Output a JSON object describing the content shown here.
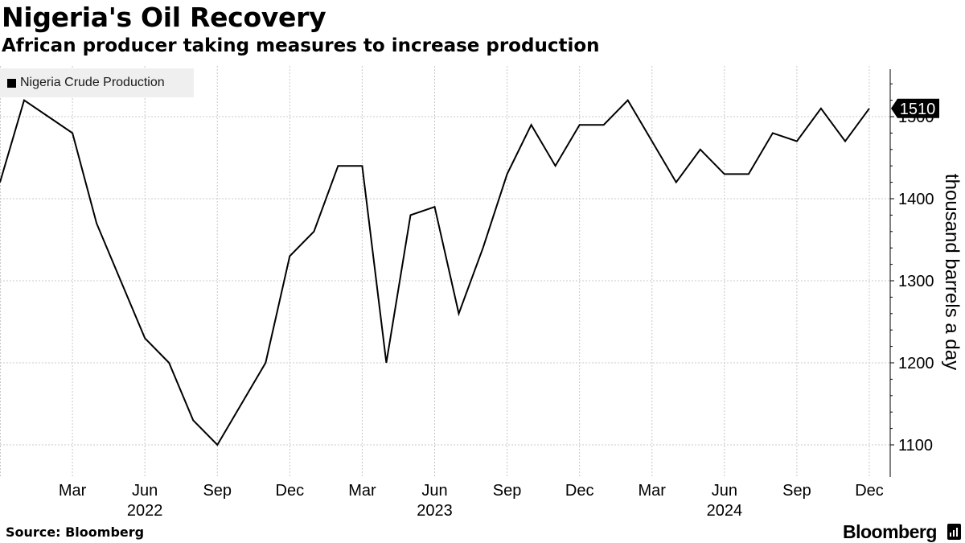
{
  "title": "Nigeria's Oil Recovery",
  "subtitle": "African producer taking measures to increase production",
  "source": "Source: Bloomberg",
  "brand": "Bloomberg",
  "brand_icon": "bloomberg-bars-icon",
  "legend": {
    "label": "Nigeria Crude Production",
    "color": "#000000"
  },
  "chart_data": {
    "type": "line",
    "title": "Nigeria's Oil Recovery",
    "subtitle": "African producer taking measures to increase production",
    "series": [
      {
        "name": "Nigeria Crude Production",
        "color": "#000000",
        "x": [
          "2021-12",
          "2022-01",
          "2022-02",
          "2022-03",
          "2022-04",
          "2022-05",
          "2022-06",
          "2022-07",
          "2022-08",
          "2022-09",
          "2022-10",
          "2022-11",
          "2022-12",
          "2023-01",
          "2023-02",
          "2023-03",
          "2023-04",
          "2023-05",
          "2023-06",
          "2023-07",
          "2023-08",
          "2023-09",
          "2023-10",
          "2023-11",
          "2023-12",
          "2024-01",
          "2024-02",
          "2024-03",
          "2024-04",
          "2024-05",
          "2024-06",
          "2024-07",
          "2024-08",
          "2024-09",
          "2024-10",
          "2024-11",
          "2024-12"
        ],
        "values": [
          1420,
          1520,
          1500,
          1480,
          1370,
          1300,
          1230,
          1200,
          1130,
          1100,
          1150,
          1200,
          1330,
          1360,
          1440,
          1440,
          1200,
          1380,
          1390,
          1260,
          1340,
          1430,
          1490,
          1440,
          1490,
          1490,
          1520,
          1470,
          1420,
          1460,
          1430,
          1430,
          1480,
          1470,
          1510,
          1470,
          1510
        ]
      }
    ],
    "x_ticks": [
      {
        "label": "Mar",
        "year": "",
        "month_index": 3
      },
      {
        "label": "Jun",
        "year": "2022",
        "month_index": 6
      },
      {
        "label": "Sep",
        "year": "",
        "month_index": 9
      },
      {
        "label": "Dec",
        "year": "",
        "month_index": 12
      },
      {
        "label": "Mar",
        "year": "",
        "month_index": 15
      },
      {
        "label": "Jun",
        "year": "2023",
        "month_index": 18
      },
      {
        "label": "Sep",
        "year": "",
        "month_index": 21
      },
      {
        "label": "Dec",
        "year": "",
        "month_index": 24
      },
      {
        "label": "Mar",
        "year": "",
        "month_index": 27
      },
      {
        "label": "Jun",
        "year": "2024",
        "month_index": 30
      },
      {
        "label": "Sep",
        "year": "",
        "month_index": 33
      },
      {
        "label": "Dec",
        "year": "",
        "month_index": 36
      }
    ],
    "y_ticks": [
      1100,
      1200,
      1300,
      1400,
      1500
    ],
    "ylim": [
      1060,
      1560
    ],
    "xlim": [
      0,
      36
    ],
    "xlabel": "",
    "ylabel": "thousand barrels a day",
    "last_value_label": "1510",
    "grid": true,
    "legend_position": "top-left"
  }
}
